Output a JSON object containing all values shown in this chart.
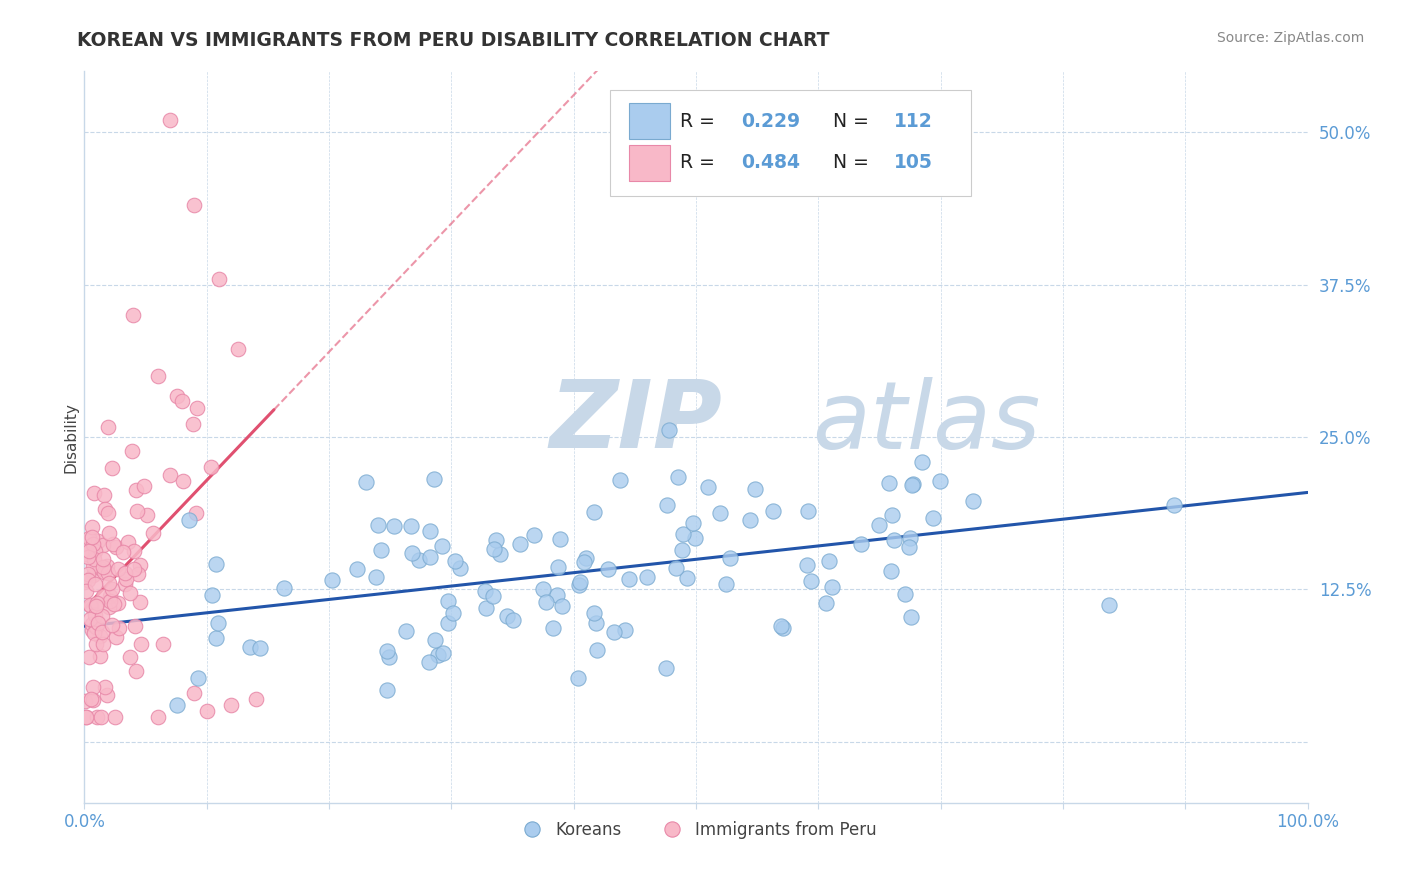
{
  "title": "KOREAN VS IMMIGRANTS FROM PERU DISABILITY CORRELATION CHART",
  "source": "Source: ZipAtlas.com",
  "ylabel": "Disability",
  "xlim": [
    0,
    1.0
  ],
  "ylim": [
    -0.05,
    0.55
  ],
  "yticks": [
    0.0,
    0.125,
    0.25,
    0.375,
    0.5
  ],
  "ytick_labels": [
    "",
    "12.5%",
    "25.0%",
    "37.5%",
    "50.0%"
  ],
  "xticks": [
    0.0,
    0.1,
    0.2,
    0.3,
    0.4,
    0.5,
    0.6,
    0.7,
    0.8,
    0.9,
    1.0
  ],
  "xtick_labels": [
    "0.0%",
    "",
    "",
    "",
    "",
    "",
    "",
    "",
    "",
    "",
    "100.0%"
  ],
  "korean_R": 0.229,
  "korean_N": 112,
  "peru_R": 0.484,
  "peru_N": 105,
  "background_color": "#ffffff",
  "plot_bg_color": "#ffffff",
  "grid_color": "#c8d8e8",
  "korean_color": "#aaccee",
  "korean_edge_color": "#7aaad0",
  "peru_color": "#f8b8c8",
  "peru_edge_color": "#e888a8",
  "trend_korean_color": "#2255aa",
  "trend_peru_color": "#e05070",
  "title_color": "#333333",
  "source_color": "#888888",
  "axis_label_color": "#444444",
  "tick_label_color": "#5b9bd5",
  "legend_R_color": "#222222",
  "legend_val_color": "#5b9bd5",
  "watermark_zip_color": "#c8d8e8",
  "watermark_atlas_color": "#c8d8e8",
  "seed": 7
}
